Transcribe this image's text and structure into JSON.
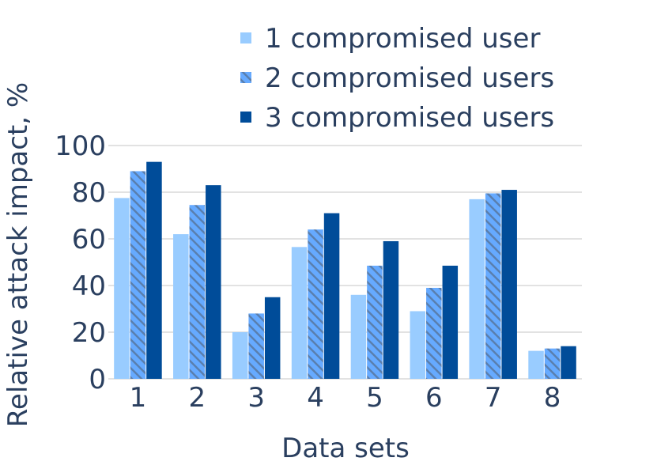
{
  "chart_data": {
    "type": "bar",
    "categories": [
      "1",
      "2",
      "3",
      "4",
      "5",
      "6",
      "7",
      "8"
    ],
    "series": [
      {
        "name": "1 compromised user",
        "values": [
          77.5,
          62,
          20,
          56.5,
          36,
          29,
          77,
          12
        ],
        "color": "#99ccff",
        "pattern": "solid"
      },
      {
        "name": "2 compromised users",
        "values": [
          89,
          74.5,
          28,
          64,
          48.5,
          39,
          79.5,
          13
        ],
        "color": "#66aaff",
        "pattern": "diagonal-hatch"
      },
      {
        "name": "3 compromised users",
        "values": [
          93,
          83,
          35,
          71,
          59,
          48.5,
          81,
          14
        ],
        "color": "#004c99",
        "pattern": "solid"
      }
    ],
    "xlabel": "Data sets",
    "ylabel": "Relative attack impact, %",
    "ylim": [
      0,
      100
    ],
    "yticks": [
      0,
      20,
      40,
      60,
      80,
      100
    ],
    "grid": true,
    "legend_position": "top-center"
  }
}
